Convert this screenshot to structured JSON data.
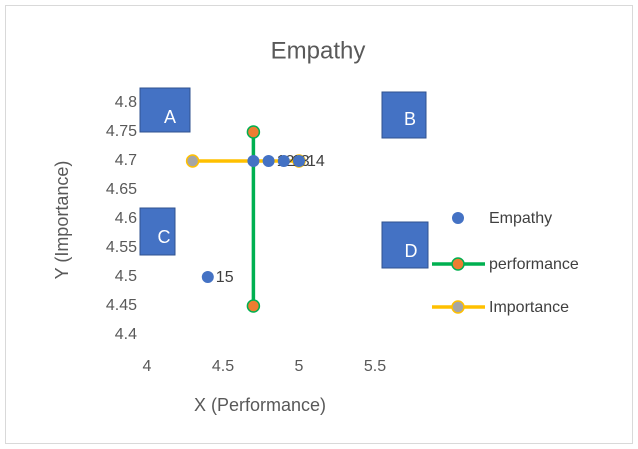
{
  "chart_data": {
    "type": "scatter",
    "title": "Empathy",
    "x_label": "X (Performance)",
    "y_label": "Y (Importance)",
    "xlim": [
      4,
      5.5
    ],
    "ylim": [
      4.4,
      4.8
    ],
    "xticks": [
      4,
      4.5,
      5,
      5.5
    ],
    "yticks": [
      4.4,
      4.45,
      4.5,
      4.55,
      4.6,
      4.65,
      4.7,
      4.75,
      4.8
    ],
    "grid": false,
    "legend": "right",
    "annotations": [
      "A",
      "B",
      "C",
      "D"
    ],
    "series": [
      {
        "name": "Empathy",
        "color": "#4472c4",
        "marker_color": "#4472c4",
        "lines": false,
        "x": [
          4.7,
          4.8,
          4.9,
          5.0,
          4.4
        ],
        "values": [
          4.7,
          4.7,
          4.7,
          4.7,
          4.5
        ],
        "point_labels": [
          null,
          "12",
          "13",
          "14",
          "15"
        ]
      },
      {
        "name": "performance",
        "color": "#00b050",
        "marker_color": "#ed7d31",
        "lines": true,
        "x": [
          4.7,
          4.7
        ],
        "values": [
          4.75,
          4.45
        ]
      },
      {
        "name": "Importance",
        "color": "#ffc000",
        "marker_color": "#a5a5a5",
        "lines": true,
        "x": [
          4.3,
          5.0
        ],
        "values": [
          4.7,
          4.7
        ]
      }
    ]
  }
}
